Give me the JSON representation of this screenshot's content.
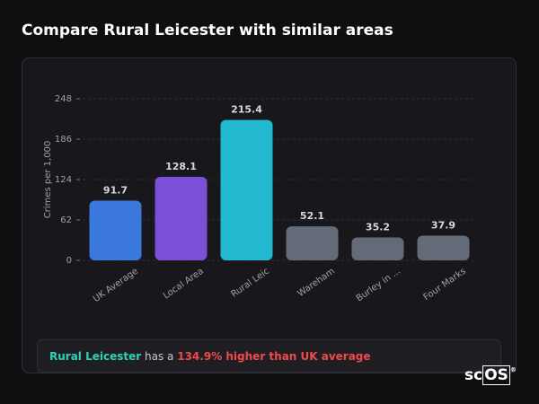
{
  "header": {
    "title": "Compare Rural Leicester with similar areas"
  },
  "chart_data": {
    "type": "bar",
    "y_label": "Crimes per 1,000",
    "categories": [
      "UK Average",
      "Local Area",
      "Rural Leic",
      "Wareham",
      "Burley in ...",
      "Four Marks"
    ],
    "values": [
      91.7,
      128.1,
      215.4,
      52.1,
      35.2,
      37.9
    ],
    "colors": [
      "#3b78de",
      "#7b4fd6",
      "#22b8cf",
      "#646b78",
      "#646b78",
      "#646b78"
    ],
    "ylim": [
      0,
      248
    ],
    "yticks": [
      0,
      62,
      124,
      186,
      248
    ],
    "grid": true
  },
  "footer": {
    "subject": "Rural Leicester",
    "middle": "has a",
    "highlight": "134.9% higher than UK average"
  },
  "logo": {
    "left": "sc",
    "boxed": "OS",
    "mark": "®"
  }
}
